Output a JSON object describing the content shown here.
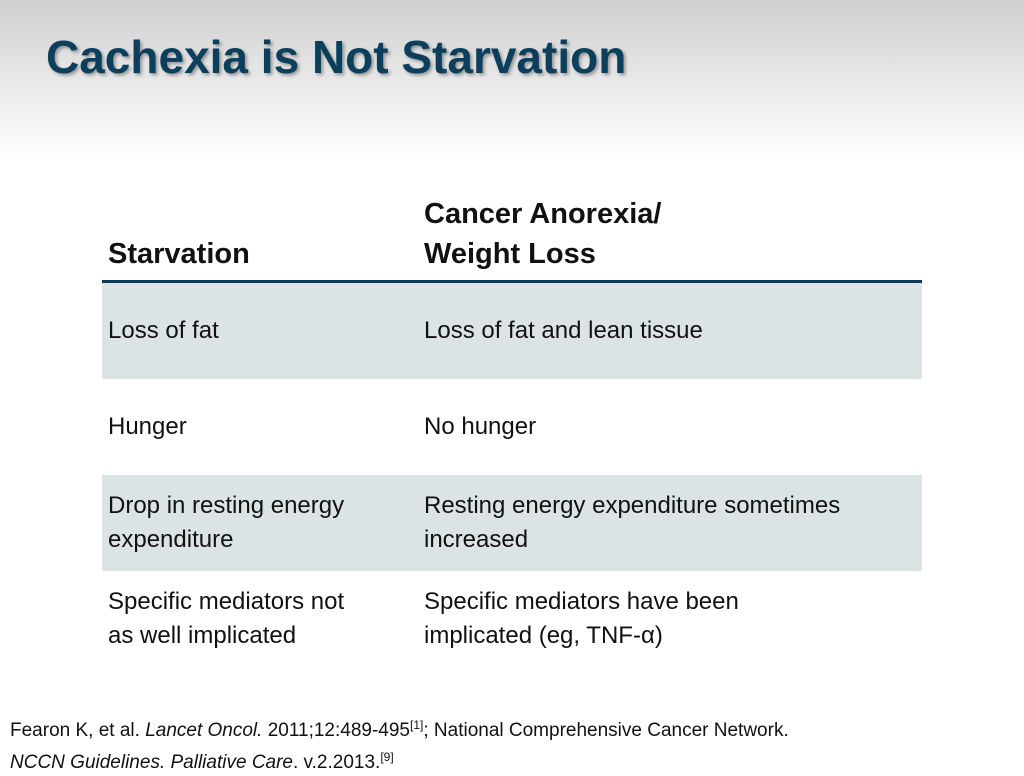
{
  "slide": {
    "title": "Cachexia is Not Starvation"
  },
  "table": {
    "headers": {
      "col1": "Starvation",
      "col2_line1": "Cancer Anorexia/",
      "col2_line2": "Weight Loss"
    },
    "rows": [
      {
        "starvation": [
          "Loss of fat"
        ],
        "cancer": [
          "Loss of fat and lean tissue"
        ]
      },
      {
        "starvation": [
          "Hunger"
        ],
        "cancer": [
          "No hunger"
        ]
      },
      {
        "starvation": [
          "Drop in resting energy",
          "expenditure"
        ],
        "cancer": [
          "Resting energy expenditure sometimes",
          "increased"
        ]
      },
      {
        "starvation": [
          "Specific mediators not",
          "as well implicated"
        ],
        "cancer": [
          "Specific mediators have been",
          "implicated (eg, TNF-α)"
        ]
      }
    ]
  },
  "reference": {
    "line1": {
      "authors": "Fearon K, et al.",
      "journal": "Lancet Oncol.",
      "citation": "2011;12:489-495",
      "sup1": "[1]",
      "rest": "; National Comprehensive Cancer Network."
    },
    "line2": {
      "title": "NCCN Guidelines. Palliative Care",
      "version": ". v.2.2013.",
      "sup2": "[9]"
    }
  }
}
